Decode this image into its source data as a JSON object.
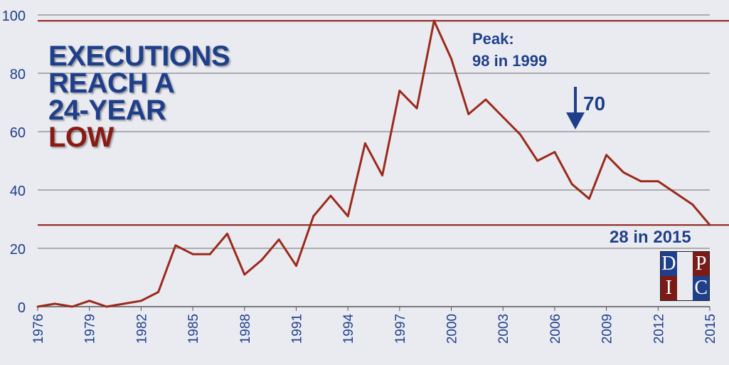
{
  "headline": {
    "line1": "EXECUTIONS",
    "line2": "REACH A",
    "line3": "24-YEAR",
    "line4": "LOW"
  },
  "annotations": {
    "peak_label": "Peak:",
    "peak_value": "98 in 1999",
    "drop_value": "70",
    "low_value": "28 in 2015"
  },
  "logo": {
    "letters": [
      "D",
      "P",
      "I",
      "C"
    ]
  },
  "colors": {
    "line": "#9b2a1a",
    "blue": "#1f3f8a",
    "red": "#8b1a14",
    "grid": "#6e6e6e",
    "background": "#e9ebf1"
  },
  "chart_data": {
    "type": "line",
    "x": [
      1976,
      1977,
      1978,
      1979,
      1980,
      1981,
      1982,
      1983,
      1984,
      1985,
      1986,
      1987,
      1988,
      1989,
      1990,
      1991,
      1992,
      1993,
      1994,
      1995,
      1996,
      1997,
      1998,
      1999,
      2000,
      2001,
      2002,
      2003,
      2004,
      2005,
      2006,
      2007,
      2008,
      2009,
      2010,
      2011,
      2012,
      2013,
      2014,
      2015
    ],
    "series": [
      {
        "values": [
          0,
          1,
          0,
          2,
          0,
          1,
          2,
          5,
          21,
          18,
          18,
          25,
          11,
          16,
          23,
          14,
          31,
          38,
          31,
          56,
          45,
          74,
          68,
          98,
          85,
          66,
          71,
          65,
          59,
          50,
          53,
          42,
          37,
          52,
          46,
          43,
          43,
          39,
          35,
          28
        ]
      }
    ],
    "x_ticks": [
      "1976",
      "1979",
      "1982",
      "1985",
      "1988",
      "1991",
      "1994",
      "1997",
      "2000",
      "2003",
      "2006",
      "2009",
      "2012",
      "2015"
    ],
    "y_ticks": [
      "0",
      "20",
      "40",
      "60",
      "80",
      "100"
    ],
    "ylim": [
      0,
      100
    ],
    "xlim": [
      1976,
      2015
    ],
    "reference_lines": [
      98,
      28
    ],
    "grid": true
  }
}
